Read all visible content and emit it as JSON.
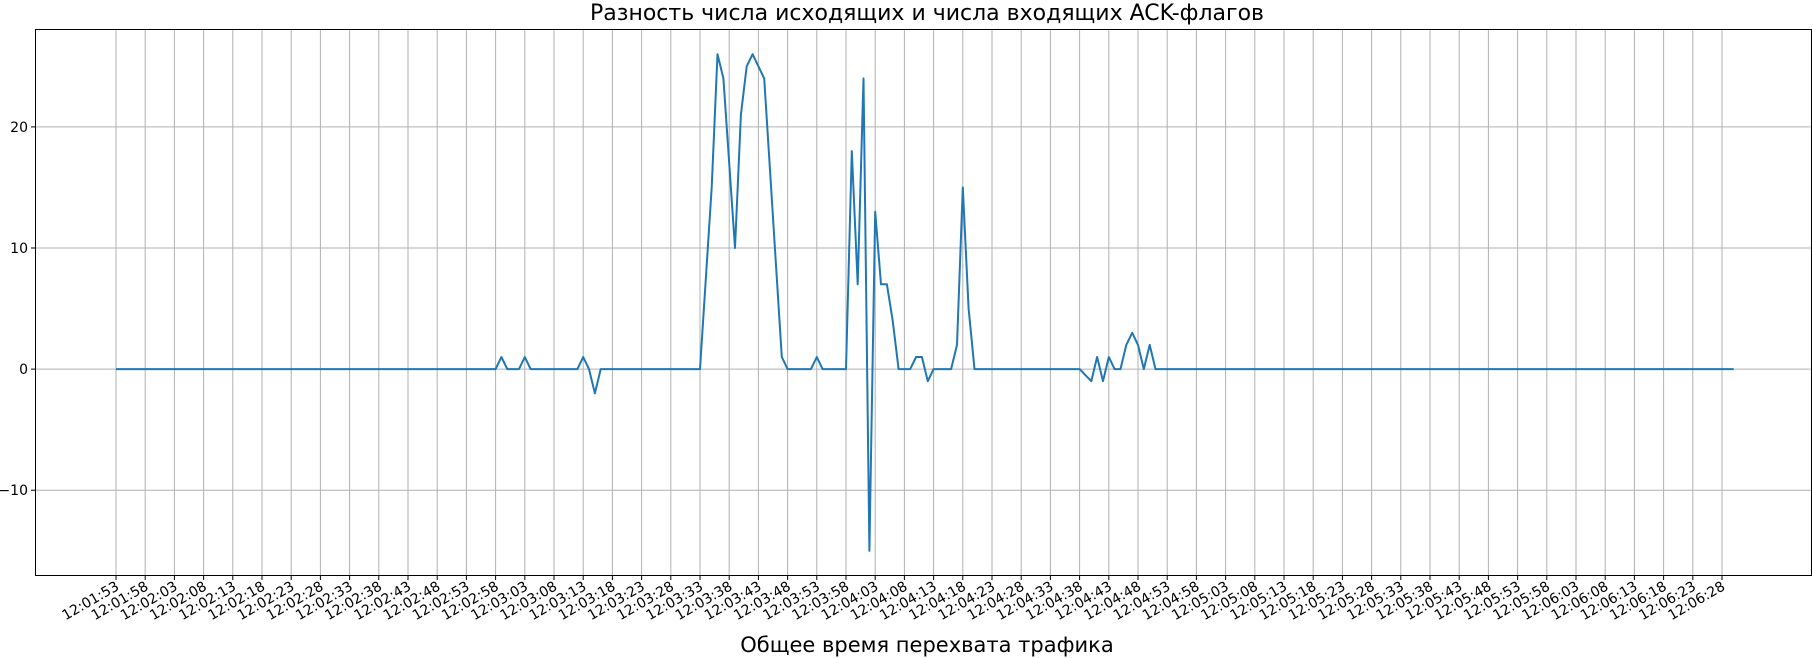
{
  "chart_data": {
    "type": "line",
    "title": "Разность числа исходящих и числа входящих ACK-флагов",
    "xlabel": "Общее время перехвата трафика",
    "ylabel": "",
    "grid": true,
    "ylim": [
      -17,
      28
    ],
    "yticks": [
      -10,
      0,
      10,
      20
    ],
    "xticks": [
      "12:01:53",
      "12:01:58",
      "12:02:03",
      "12:02:08",
      "12:02:13",
      "12:02:18",
      "12:02:23",
      "12:02:28",
      "12:02:33",
      "12:02:38",
      "12:02:43",
      "12:02:48",
      "12:02:53",
      "12:02:58",
      "12:03:03",
      "12:03:08",
      "12:03:13",
      "12:03:18",
      "12:03:23",
      "12:03:28",
      "12:03:33",
      "12:03:38",
      "12:03:43",
      "12:03:48",
      "12:03:53",
      "12:03:58",
      "12:04:03",
      "12:04:08",
      "12:04:13",
      "12:04:18",
      "12:04:23",
      "12:04:28",
      "12:04:33",
      "12:04:38",
      "12:04:43",
      "12:04:48",
      "12:04:53",
      "12:04:58",
      "12:05:03",
      "12:05:08",
      "12:05:13",
      "12:05:18",
      "12:05:23",
      "12:05:28",
      "12:05:33",
      "12:05:38",
      "12:05:43",
      "12:05:48",
      "12:05:53",
      "12:05:58",
      "12:06:03",
      "12:06:08",
      "12:06:13",
      "12:06:18",
      "12:06:23",
      "12:06:28"
    ],
    "series": [
      {
        "color": "#1f77b4",
        "points": [
          [
            "12:01:53",
            0
          ],
          [
            "12:02:58",
            0
          ],
          [
            "12:02:59",
            1
          ],
          [
            "12:03:00",
            0
          ],
          [
            "12:03:02",
            0
          ],
          [
            "12:03:03",
            1
          ],
          [
            "12:03:04",
            0
          ],
          [
            "12:03:12",
            0
          ],
          [
            "12:03:13",
            1
          ],
          [
            "12:03:14",
            0
          ],
          [
            "12:03:15",
            -2
          ],
          [
            "12:03:16",
            0
          ],
          [
            "12:03:33",
            0
          ],
          [
            "12:03:35",
            15
          ],
          [
            "12:03:36",
            26
          ],
          [
            "12:03:37",
            24
          ],
          [
            "12:03:39",
            10
          ],
          [
            "12:03:40",
            21
          ],
          [
            "12:03:41",
            25
          ],
          [
            "12:03:42",
            26
          ],
          [
            "12:03:44",
            24
          ],
          [
            "12:03:47",
            1
          ],
          [
            "12:03:48",
            0
          ],
          [
            "12:03:52",
            0
          ],
          [
            "12:03:53",
            1
          ],
          [
            "12:03:54",
            0
          ],
          [
            "12:03:58",
            0
          ],
          [
            "12:03:59",
            18
          ],
          [
            "12:04:00",
            7
          ],
          [
            "12:04:01",
            24
          ],
          [
            "12:04:02",
            -15
          ],
          [
            "12:04:03",
            13
          ],
          [
            "12:04:04",
            7
          ],
          [
            "12:04:05",
            7
          ],
          [
            "12:04:06",
            4
          ],
          [
            "12:04:07",
            0
          ],
          [
            "12:04:09",
            0
          ],
          [
            "12:04:10",
            1
          ],
          [
            "12:04:11",
            1
          ],
          [
            "12:04:12",
            -1
          ],
          [
            "12:04:13",
            0
          ],
          [
            "12:04:16",
            0
          ],
          [
            "12:04:17",
            2
          ],
          [
            "12:04:18",
            15
          ],
          [
            "12:04:19",
            5
          ],
          [
            "12:04:20",
            0
          ],
          [
            "12:04:38",
            0
          ],
          [
            "12:04:40",
            -1
          ],
          [
            "12:04:41",
            1
          ],
          [
            "12:04:42",
            -1
          ],
          [
            "12:04:43",
            1
          ],
          [
            "12:04:44",
            0
          ],
          [
            "12:04:45",
            0
          ],
          [
            "12:04:46",
            2
          ],
          [
            "12:04:47",
            3
          ],
          [
            "12:04:48",
            2
          ],
          [
            "12:04:49",
            0
          ],
          [
            "12:04:50",
            2
          ],
          [
            "12:04:51",
            0
          ],
          [
            "12:06:30",
            0
          ]
        ]
      }
    ]
  }
}
